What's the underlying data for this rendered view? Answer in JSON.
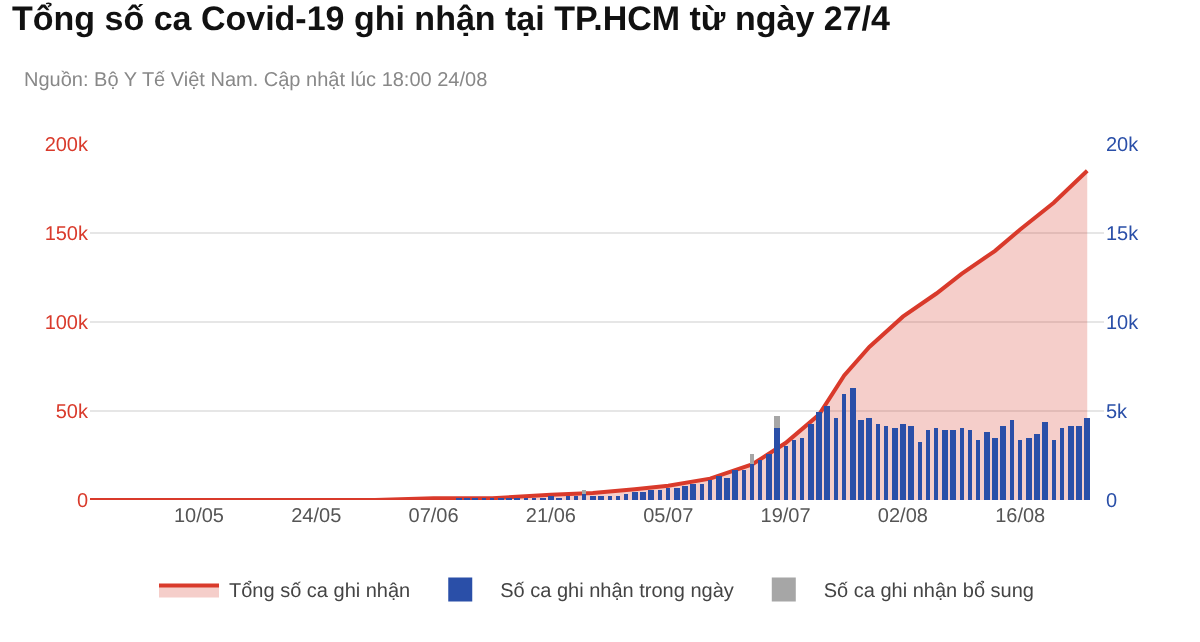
{
  "chart_data": {
    "type": "bar",
    "title": "Tổng số ca Covid-19 ghi nhận tại TP.HCM từ ngày 27/4",
    "subtitle": "Nguồn: Bộ Y Tế Việt Nam. Cập nhật lúc 18:00 24/08",
    "x": [
      "--06-10",
      "--06-11",
      "--06-12",
      "--06-13",
      "--06-14",
      "--06-15",
      "--06-16",
      "--06-17",
      "--06-18",
      "--06-19",
      "--06-20",
      "--06-21",
      "--06-22",
      "--06-23",
      "--06-24",
      "--06-25",
      "--06-26",
      "--06-27",
      "--06-28",
      "--06-29",
      "--06-30",
      "--07-01",
      "--07-02",
      "--07-03",
      "--07-04",
      "--07-05",
      "--07-06",
      "--07-07",
      "--07-08",
      "--07-09",
      "--07-10",
      "--07-11",
      "--07-12",
      "--07-13",
      "--07-14",
      "--07-15",
      "--07-16",
      "--07-17",
      "--07-18",
      "--07-19",
      "--07-20",
      "--07-21",
      "--07-22",
      "--07-23",
      "--07-24",
      "--07-25",
      "--07-26",
      "--07-27",
      "--07-28",
      "--07-29",
      "--07-30",
      "--07-31",
      "--08-01",
      "--08-02",
      "--08-03",
      "--08-04",
      "--08-05",
      "--08-06",
      "--08-07",
      "--08-08",
      "--08-09",
      "--08-10",
      "--08-11",
      "--08-12",
      "--08-13",
      "--08-14",
      "--08-15",
      "--08-16",
      "--08-17",
      "--08-18",
      "--08-19",
      "--08-20",
      "--08-21",
      "--08-22",
      "--08-23",
      "--08-24"
    ],
    "stacked": true,
    "series": [
      {
        "name": "Tổng số ca ghi nhận",
        "type": "area",
        "color": "#d93a2b",
        "x": [
          "--04-27",
          "--05-15",
          "--05-31",
          "--06-07",
          "--06-14",
          "--06-21",
          "--06-26",
          "--07-01",
          "--07-05",
          "--07-10",
          "--07-15",
          "--07-19",
          "--07-23",
          "--07-26",
          "--07-29",
          "--08-02",
          "--08-06",
          "--08-09",
          "--08-13",
          "--08-16",
          "--08-20",
          "--08-24"
        ],
        "values": [
          0,
          0,
          0,
          1000,
          1000,
          3000,
          4000,
          6000,
          8000,
          12000,
          20000,
          32000,
          48000,
          70000,
          86000,
          103000,
          116000,
          127000,
          140000,
          152000,
          167000,
          185000
        ]
      },
      {
        "name": "Số ca ghi nhận trong ngày",
        "axis": "y2",
        "color": "#2a4fa8",
        "values": [
          100,
          100,
          100,
          100,
          100,
          100,
          100,
          100,
          100,
          100,
          100,
          200,
          100,
          200,
          200,
          300,
          200,
          200,
          200,
          200,
          300,
          400,
          500,
          600,
          600,
          700,
          700,
          800,
          900,
          900,
          1100,
          1300,
          1200,
          1700,
          1700,
          2000,
          2200,
          2600,
          4100,
          3000,
          3400,
          3500,
          4300,
          4900,
          5300,
          4600,
          6000,
          6300,
          4500,
          4600,
          4300,
          4200,
          4100,
          4300,
          4200,
          3300,
          3900,
          4100,
          3900,
          3900,
          4000,
          3900,
          3400,
          3800,
          3500,
          4200,
          4500,
          3400,
          3500,
          3700,
          4400,
          3400,
          4100,
          4200,
          4200,
          4600
        ]
      },
      {
        "name": "Số ca ghi nhận bổ sung",
        "axis": "y2",
        "color": "#a6a6a6",
        "values": [
          null,
          null,
          null,
          null,
          null,
          null,
          null,
          null,
          null,
          null,
          null,
          null,
          null,
          null,
          null,
          300,
          null,
          null,
          null,
          null,
          null,
          null,
          null,
          null,
          null,
          null,
          null,
          null,
          null,
          null,
          null,
          null,
          null,
          null,
          null,
          600,
          null,
          null,
          600,
          null,
          null,
          null,
          null,
          null,
          null,
          null,
          null,
          null,
          null,
          null,
          null,
          null,
          null,
          null,
          null,
          null,
          null,
          null,
          null,
          null,
          null,
          null,
          null,
          null,
          null,
          null,
          null,
          null,
          null,
          null,
          null,
          null,
          null,
          null,
          null,
          null
        ]
      }
    ],
    "xlim": [
      "--04-27",
      "--08-26"
    ],
    "xticks": [
      {
        "value": "--05-10",
        "label": "10/05"
      },
      {
        "value": "--05-24",
        "label": "24/05"
      },
      {
        "value": "--06-07",
        "label": "07/06"
      },
      {
        "value": "--06-21",
        "label": "21/06"
      },
      {
        "value": "--07-05",
        "label": "05/07"
      },
      {
        "value": "--07-19",
        "label": "19/07"
      },
      {
        "value": "--08-02",
        "label": "02/08"
      },
      {
        "value": "--08-16",
        "label": "16/08"
      }
    ],
    "ylim": [
      0,
      200000
    ],
    "yticks": [
      0,
      {
        "value": 50000,
        "label": "50k"
      },
      {
        "value": 100000,
        "label": "100k"
      },
      {
        "value": 150000,
        "label": "150k"
      },
      {
        "value": 200000,
        "label": "200k"
      }
    ],
    "y2lim": [
      0,
      20000
    ],
    "y2ticks": [
      0,
      {
        "value": 5000,
        "label": "5k"
      },
      {
        "value": 10000,
        "label": "10k"
      },
      {
        "value": 15000,
        "label": "15k"
      },
      {
        "value": 20000,
        "label": "20k"
      }
    ],
    "grid": "y",
    "legend": "bottom"
  }
}
